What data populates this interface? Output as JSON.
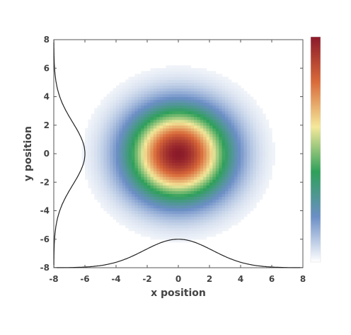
{
  "chart_data": {
    "type": "heatmap",
    "title": "",
    "xlabel": "x position",
    "ylabel": "y position",
    "xlim": [
      -8,
      8
    ],
    "ylim": [
      -8,
      8
    ],
    "x_ticks": [
      -8,
      -6,
      -4,
      -2,
      0,
      2,
      4,
      6,
      8
    ],
    "y_ticks": [
      -8,
      -6,
      -4,
      -2,
      0,
      2,
      4,
      6,
      8
    ],
    "field": {
      "shape": "2D Gaussian",
      "center": [
        0,
        0
      ],
      "sigma": 2.2
    },
    "marginals": [
      {
        "name": "",
        "axis": "x",
        "baseline": -8,
        "peak": -6,
        "center": 0
      },
      {
        "name": "",
        "axis": "y",
        "baseline": -8,
        "peak": -6,
        "center": 0
      }
    ],
    "colorbar": {
      "colors": [
        "#ffffff",
        "#6c8fc6",
        "#2fa05a",
        "#f4e89a",
        "#d96a3a",
        "#8b1a2a"
      ],
      "position": "right",
      "tick_labels": false
    },
    "grid": false,
    "legend": "none"
  }
}
